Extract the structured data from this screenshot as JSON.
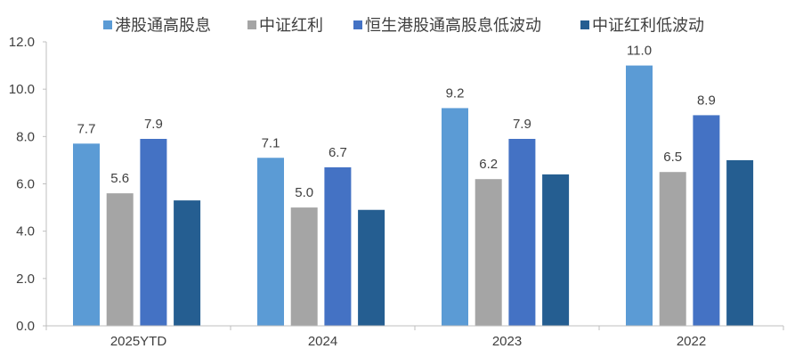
{
  "chart_data": {
    "type": "bar",
    "categories": [
      "2025YTD",
      "2024",
      "2023",
      "2022"
    ],
    "series": [
      {
        "name": "港股通高股息",
        "color": "#5B9BD5",
        "values": [
          7.7,
          7.1,
          9.2,
          11.0
        ],
        "labels": [
          "7.7",
          "7.1",
          "9.2",
          "11.0"
        ]
      },
      {
        "name": "中证红利",
        "color": "#A5A5A5",
        "values": [
          5.6,
          5.0,
          6.2,
          6.5
        ],
        "labels": [
          "5.6",
          "5.0",
          "6.2",
          "6.5"
        ]
      },
      {
        "name": "恒生港股通高股息低波动",
        "color": "#4472C4",
        "values": [
          7.9,
          6.7,
          7.9,
          8.9
        ],
        "labels": [
          "7.9",
          "6.7",
          "7.9",
          "8.9"
        ]
      },
      {
        "name": "中证红利低波动",
        "color": "#255E91",
        "values": [
          5.3,
          4.9,
          6.4,
          7.0
        ],
        "labels": []
      }
    ],
    "ylim": [
      0,
      12
    ],
    "yticks": [
      0,
      2,
      4,
      6,
      8,
      10,
      12
    ],
    "ytick_labels": [
      "0.0",
      "2.0",
      "4.0",
      "6.0",
      "8.0",
      "10.0",
      "12.0"
    ],
    "grid": false,
    "legend": "top"
  }
}
